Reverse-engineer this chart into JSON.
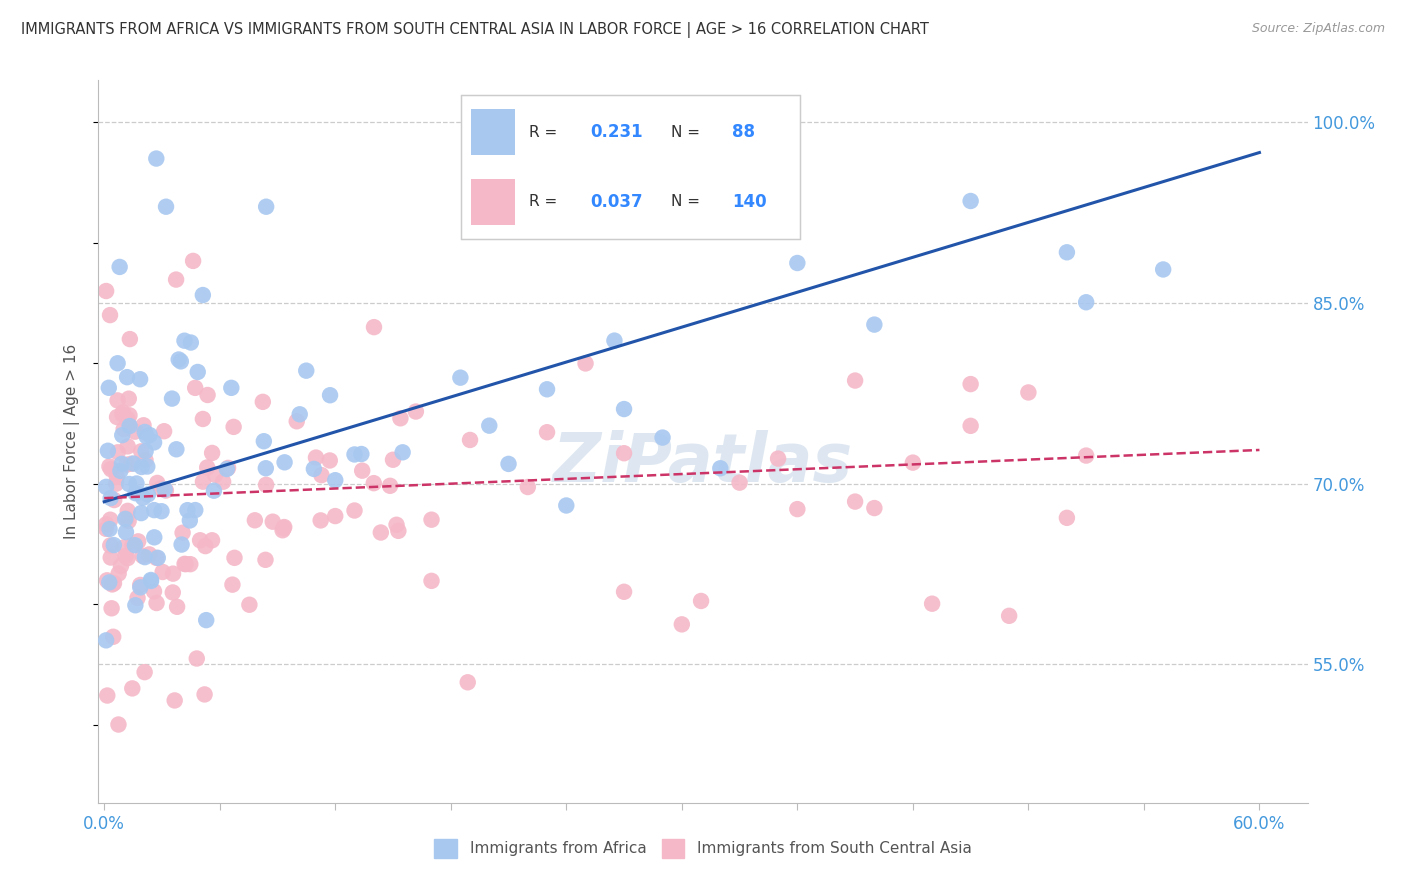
{
  "title": "IMMIGRANTS FROM AFRICA VS IMMIGRANTS FROM SOUTH CENTRAL ASIA IN LABOR FORCE | AGE > 16 CORRELATION CHART",
  "source": "Source: ZipAtlas.com",
  "ylabel": "In Labor Force | Age > 16",
  "ylabel_right_ticks": [
    1.0,
    0.85,
    0.7,
    0.55
  ],
  "ylabel_right_labels": [
    "100.0%",
    "85.0%",
    "70.0%",
    "55.0%"
  ],
  "xlim": [
    -0.003,
    0.625
  ],
  "ylim": [
    0.435,
    1.035
  ],
  "xticks": [
    0.0,
    0.06,
    0.12,
    0.18,
    0.24,
    0.3,
    0.36,
    0.42,
    0.48,
    0.54,
    0.6
  ],
  "xticklabels": [
    "0.0%",
    "",
    "",
    "",
    "",
    "",
    "",
    "",
    "",
    "",
    "60.0%"
  ],
  "series1_label": "Immigrants from Africa",
  "series1_R": "0.231",
  "series1_N": "88",
  "series1_color": "#A8C8F0",
  "series1_edge_color": "#7EB3E8",
  "series1_trend_color": "#2255AA",
  "series2_label": "Immigrants from South Central Asia",
  "series2_R": "0.037",
  "series2_N": "140",
  "series2_color": "#F5B8C8",
  "series2_edge_color": "#E8809A",
  "series2_trend_color": "#CC3366",
  "trend1_intercept": 0.685,
  "trend1_slope": 0.145,
  "trend2_intercept": 0.688,
  "trend2_slope": 0.02,
  "background_color": "#FFFFFF",
  "grid_color": "#CCCCCC",
  "watermark": "ZiPatlas",
  "watermark_color": "#C8D8E8",
  "axis_tick_color": "#4499DD"
}
